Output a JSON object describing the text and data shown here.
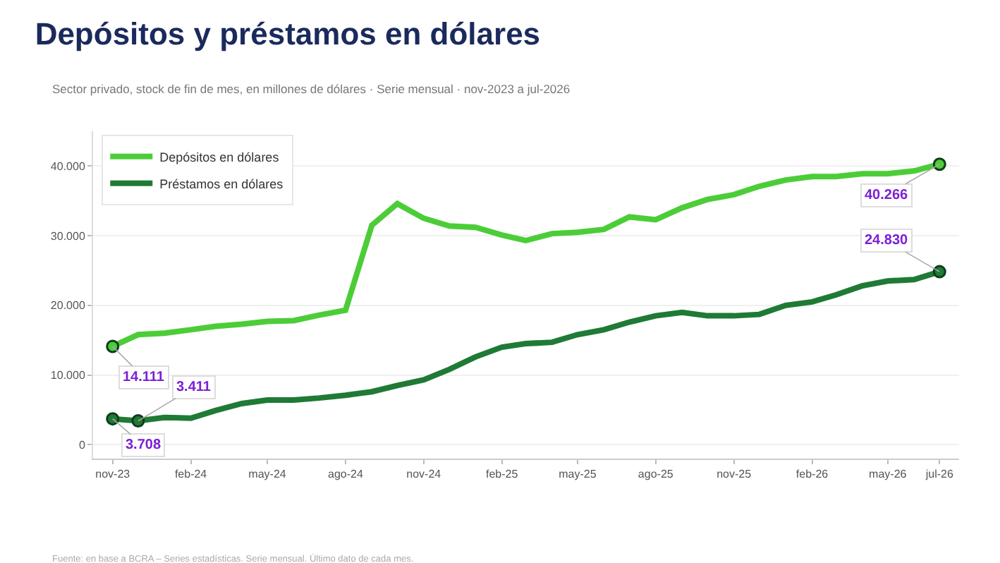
{
  "chart_data": {
    "type": "line",
    "title": "Depósitos y préstamos en dólares",
    "subtitle": "Sector privado, stock de fin de mes, en millones de dólares · Serie mensual · nov-2023 a jul-2026",
    "x": [
      "2023-11",
      "2023-12",
      "2024-01",
      "2024-02",
      "2024-03",
      "2024-04",
      "2024-05",
      "2024-06",
      "2024-07",
      "2024-08",
      "2024-09",
      "2024-10",
      "2024-11",
      "2024-12",
      "2025-01",
      "2025-02",
      "2025-03",
      "2025-04",
      "2025-05",
      "2025-06",
      "2025-07",
      "2025-08",
      "2025-09",
      "2025-10",
      "2025-11",
      "2025-12",
      "2026-01",
      "2026-02",
      "2026-03",
      "2026-04",
      "2026-05",
      "2026-06",
      "2026-07"
    ],
    "series": [
      {
        "name": "Depósitos en dólares",
        "color": "#4ccd38",
        "values": [
          14111,
          15800,
          16000,
          16500,
          17000,
          17300,
          17700,
          17800,
          18600,
          19300,
          31500,
          34600,
          32500,
          31400,
          31200,
          30100,
          29300,
          30300,
          30500,
          30900,
          32700,
          32300,
          34000,
          35200,
          35900,
          37100,
          38000,
          38500,
          38500,
          38900,
          38900,
          39300,
          40266
        ]
      },
      {
        "name": "Préstamos en dólares",
        "color": "#1f7a36",
        "values": [
          3708,
          3411,
          3900,
          3800,
          4900,
          5900,
          6400,
          6400,
          6700,
          7100,
          7600,
          8500,
          9300,
          10800,
          12600,
          14000,
          14500,
          14700,
          15800,
          16500,
          17600,
          18500,
          19000,
          18500,
          18500,
          18700,
          20000,
          20500,
          21500,
          22800,
          23500,
          23700,
          24830
        ]
      }
    ],
    "xlim": [
      "2023-10-09",
      "2026-07-24"
    ],
    "xticks": [
      {
        "value": "2023-11",
        "label": "nov-23"
      },
      {
        "value": "2024-02",
        "label": "feb-24"
      },
      {
        "value": "2024-05",
        "label": "may-24"
      },
      {
        "value": "2024-08",
        "label": "ago-24"
      },
      {
        "value": "2024-11",
        "label": "nov-24"
      },
      {
        "value": "2025-02",
        "label": "feb-25"
      },
      {
        "value": "2025-05",
        "label": "may-25"
      },
      {
        "value": "2025-08",
        "label": "ago-25"
      },
      {
        "value": "2025-11",
        "label": "nov-25"
      },
      {
        "value": "2026-02",
        "label": "feb-26"
      },
      {
        "value": "2026-05",
        "label": "may-26"
      },
      {
        "value": "2026-07",
        "label": "jul-26"
      }
    ],
    "ylim": [
      -2000,
      45000
    ],
    "yticks": [
      0,
      {
        "value": 10000,
        "label": "10.000"
      },
      {
        "value": 20000,
        "label": "20.000"
      },
      {
        "value": 30000,
        "label": "30.000"
      },
      {
        "value": 40000,
        "label": "40.000"
      }
    ],
    "grid": "y",
    "legend": "top left",
    "marker": "none",
    "line_style": "solid",
    "annotations": [
      {
        "text": "14.111",
        "x": "2023-11",
        "y": 14111
      },
      {
        "text": "3.708",
        "x": "2023-11",
        "y": 3708
      },
      {
        "text": "3.411",
        "x": "2023-12",
        "y": 3411
      },
      {
        "text": "40.266",
        "x": "2026-07",
        "y": 40266
      },
      {
        "text": "24.830",
        "x": "2026-07",
        "y": 24830
      },
      "Fuente: en base a BCRA – Series estadísticas. Serie mensual. Último dato de cada mes."
    ]
  }
}
